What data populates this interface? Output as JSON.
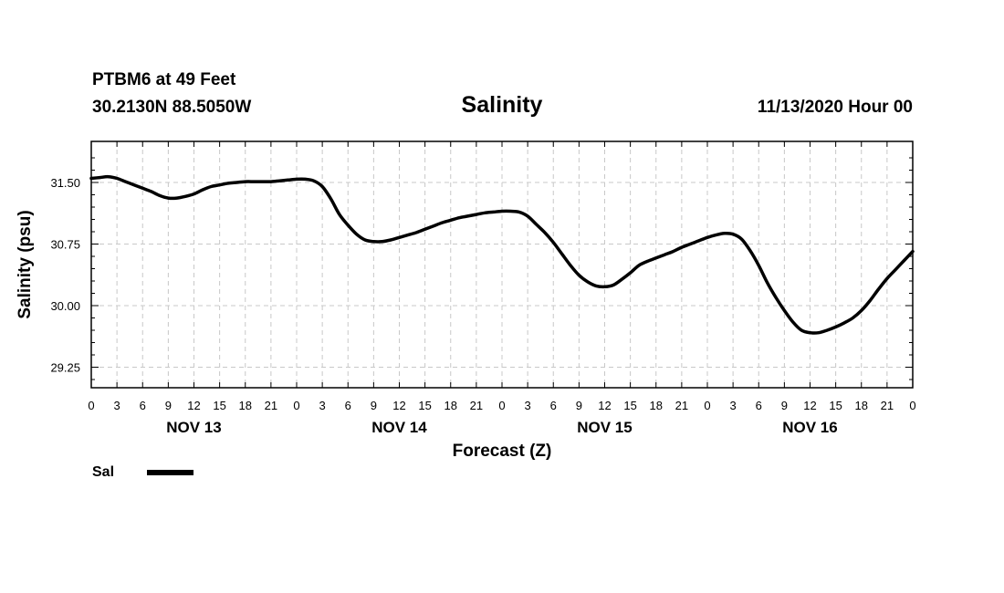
{
  "header": {
    "station": "PTBM6 at 49 Feet",
    "coordinates": "30.2130N 88.5050W",
    "datetime": "11/13/2020 Hour 00"
  },
  "chart_data": {
    "type": "line",
    "title": "Salinity",
    "xlabel": "Forecast (Z)",
    "ylabel": "Salinity (psu)",
    "xlim": [
      0,
      96
    ],
    "ylim": [
      29.0,
      32.0
    ],
    "grid": true,
    "yticks": [
      29.25,
      30.0,
      30.75,
      31.5
    ],
    "ytick_labels": [
      "29.25",
      "30.00",
      "30.75",
      "31.50"
    ],
    "yminor_ticks": [
      29.1,
      29.4,
      29.55,
      29.7,
      29.85,
      30.15,
      30.3,
      30.45,
      30.6,
      30.9,
      31.05,
      31.2,
      31.35,
      31.65,
      31.8
    ],
    "xticks": [
      0,
      3,
      6,
      9,
      12,
      15,
      18,
      21,
      24,
      27,
      30,
      33,
      36,
      39,
      42,
      45,
      48,
      51,
      54,
      57,
      60,
      63,
      66,
      69,
      72,
      75,
      78,
      81,
      84,
      87,
      90,
      93,
      96
    ],
    "xtick_labels": [
      "0",
      "3",
      "6",
      "9",
      "12",
      "15",
      "18",
      "21",
      "0",
      "3",
      "6",
      "9",
      "12",
      "15",
      "18",
      "21",
      "0",
      "3",
      "6",
      "9",
      "12",
      "15",
      "18",
      "21",
      "0",
      "3",
      "6",
      "9",
      "12",
      "15",
      "18",
      "21",
      "0"
    ],
    "day_labels": [
      {
        "x": 12,
        "label": "NOV 13"
      },
      {
        "x": 36,
        "label": "NOV 14"
      },
      {
        "x": 60,
        "label": "NOV 15"
      },
      {
        "x": 84,
        "label": "NOV 16"
      }
    ],
    "series": [
      {
        "name": "Sal",
        "color": "#000000",
        "x": [
          0,
          1,
          2,
          3,
          4,
          5,
          6,
          7,
          8,
          9,
          10,
          11,
          12,
          13,
          14,
          15,
          16,
          17,
          18,
          19,
          20,
          21,
          22,
          23,
          24,
          25,
          26,
          27,
          28,
          29,
          30,
          31,
          32,
          33,
          34,
          35,
          36,
          37,
          38,
          39,
          40,
          41,
          42,
          43,
          44,
          45,
          46,
          47,
          48,
          49,
          50,
          51,
          52,
          53,
          54,
          55,
          56,
          57,
          58,
          59,
          60,
          61,
          62,
          63,
          64,
          65,
          66,
          67,
          68,
          69,
          70,
          71,
          72,
          73,
          74,
          75,
          76,
          77,
          78,
          79,
          80,
          81,
          82,
          83,
          84,
          85,
          86,
          87,
          88,
          89,
          90,
          91,
          92,
          93,
          94,
          95,
          96
        ],
        "values": [
          31.55,
          31.56,
          31.57,
          31.55,
          31.51,
          31.47,
          31.43,
          31.39,
          31.34,
          31.31,
          31.31,
          31.33,
          31.36,
          31.41,
          31.45,
          31.47,
          31.49,
          31.5,
          31.51,
          31.51,
          31.51,
          31.51,
          31.52,
          31.53,
          31.54,
          31.54,
          31.52,
          31.45,
          31.3,
          31.11,
          30.98,
          30.87,
          30.8,
          30.78,
          30.78,
          30.8,
          30.83,
          30.86,
          30.89,
          30.93,
          30.97,
          31.01,
          31.04,
          31.07,
          31.09,
          31.11,
          31.13,
          31.14,
          31.15,
          31.15,
          31.14,
          31.09,
          30.99,
          30.89,
          30.77,
          30.63,
          30.49,
          30.37,
          30.29,
          30.24,
          30.23,
          30.25,
          30.32,
          30.4,
          30.49,
          30.54,
          30.58,
          30.62,
          30.66,
          30.71,
          30.75,
          30.79,
          30.83,
          30.86,
          30.88,
          30.87,
          30.81,
          30.67,
          30.49,
          30.28,
          30.1,
          29.94,
          29.8,
          29.7,
          29.67,
          29.67,
          29.7,
          29.74,
          29.79,
          29.85,
          29.94,
          30.06,
          30.2,
          30.33,
          30.44,
          30.55,
          30.66
        ]
      }
    ]
  },
  "legend": {
    "label": "Sal"
  }
}
